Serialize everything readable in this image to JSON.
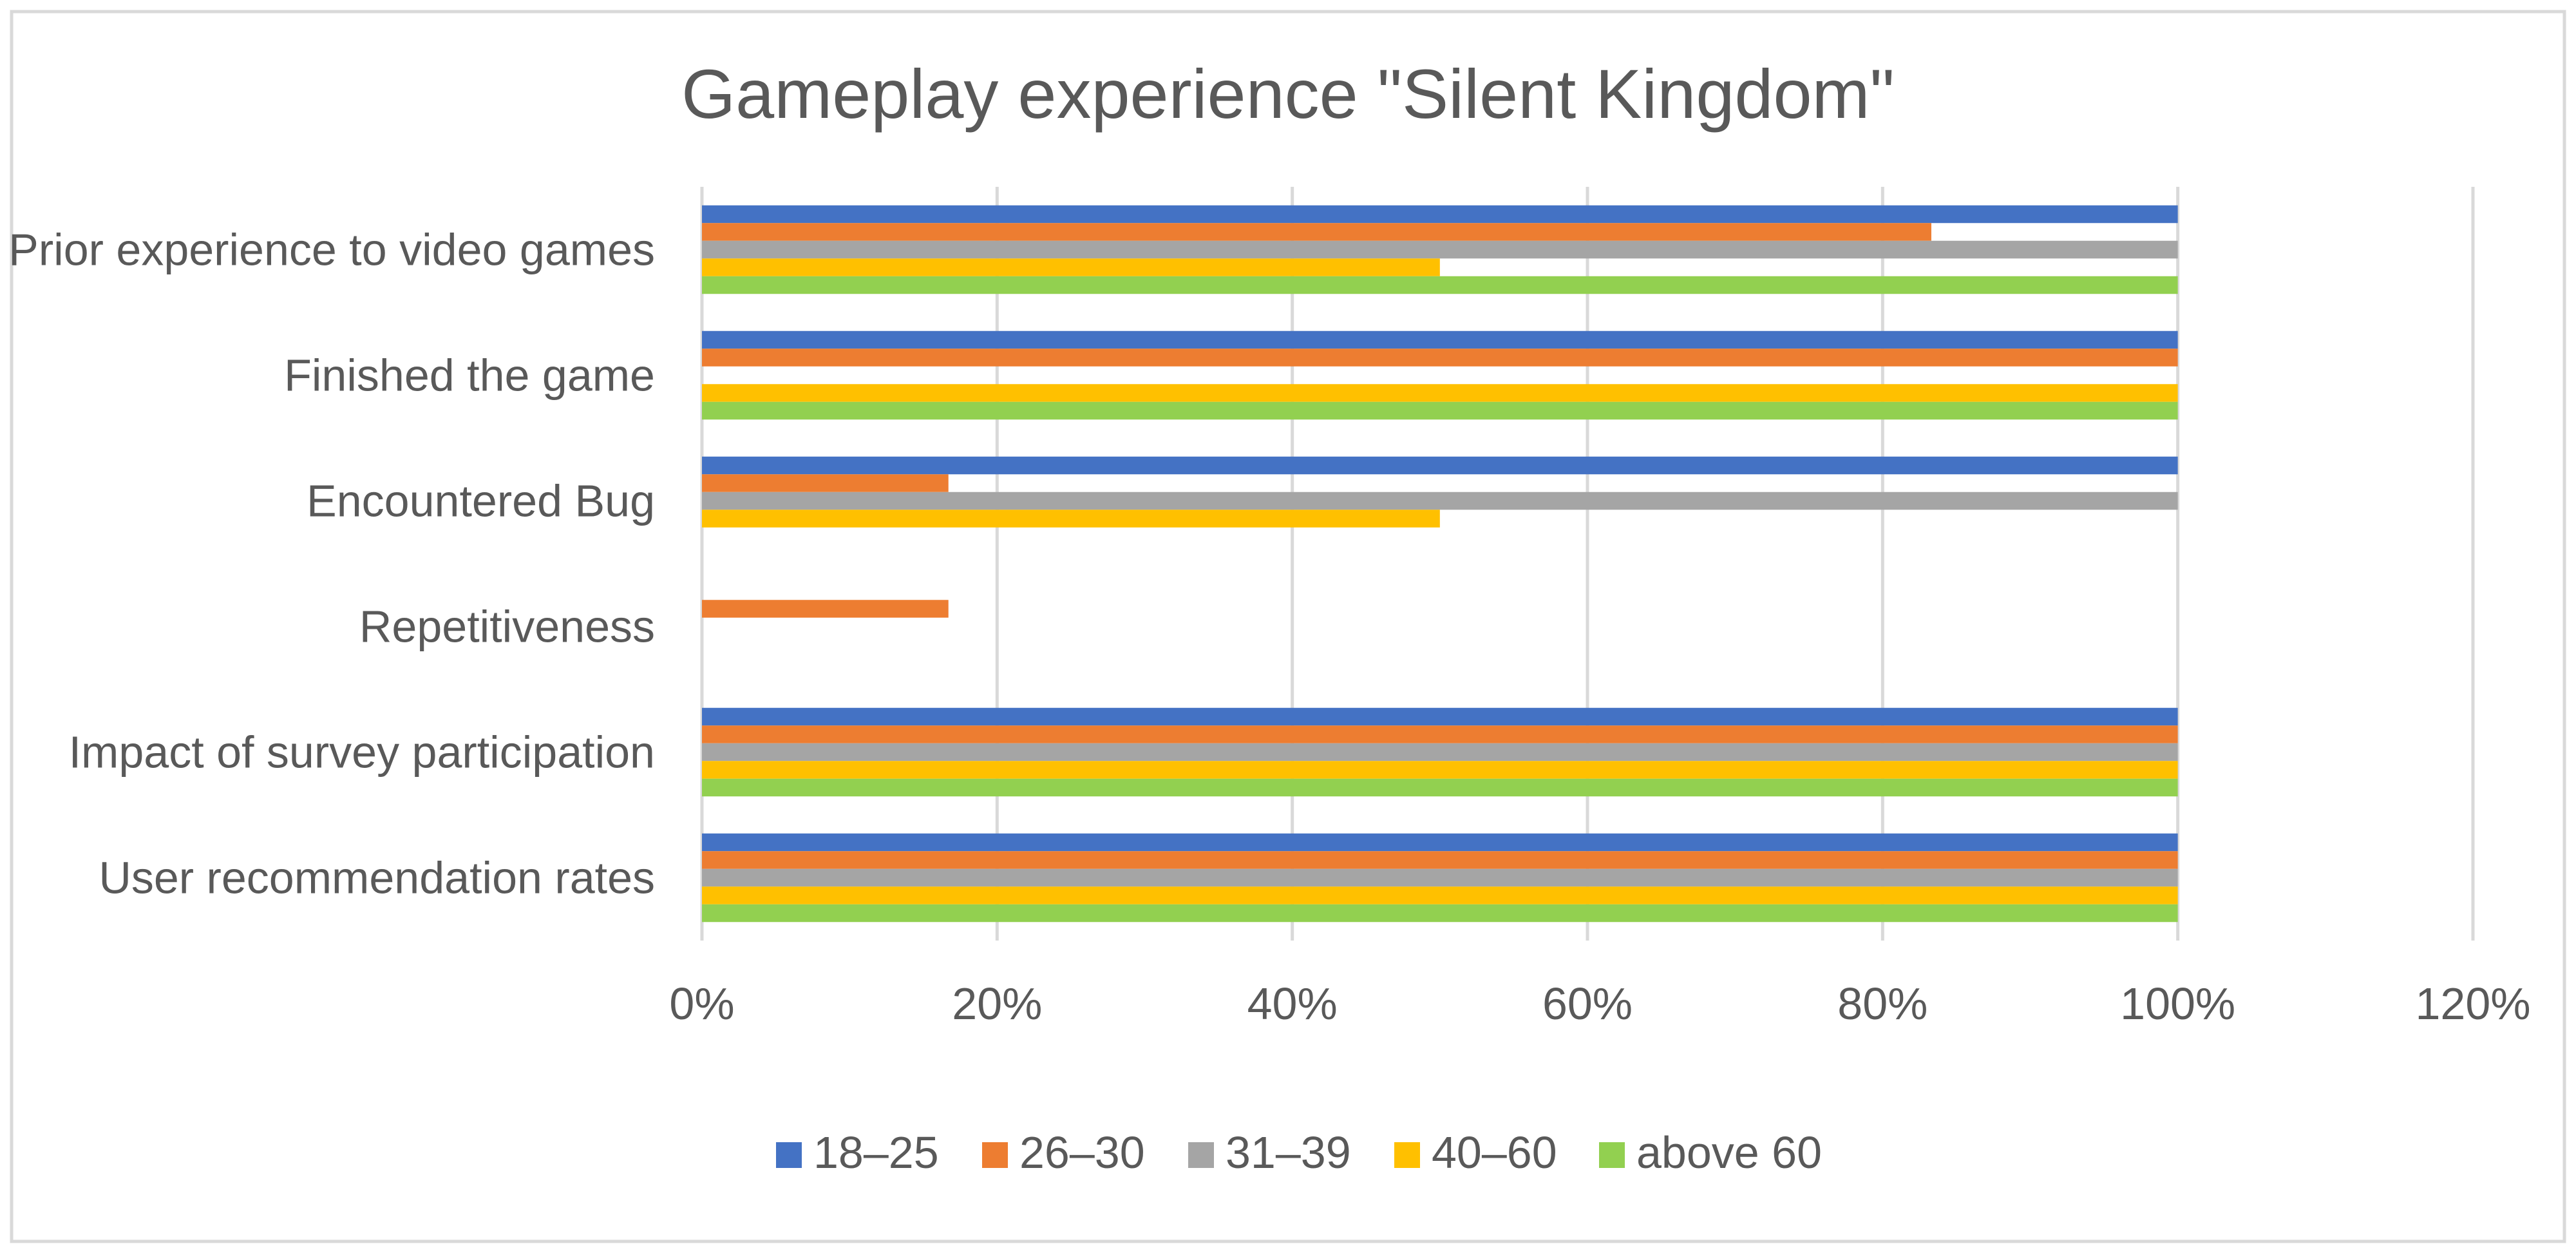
{
  "chart_data": {
    "type": "bar",
    "orientation": "horizontal",
    "title": "Gameplay experience \"Silent Kingdom\"",
    "xlabel": "",
    "ylabel": "",
    "xlim": [
      0,
      120
    ],
    "x_ticks": [
      "0%",
      "20%",
      "40%",
      "60%",
      "80%",
      "100%",
      "120%"
    ],
    "x_tick_values": [
      0,
      20,
      40,
      60,
      80,
      100,
      120
    ],
    "grid": "vertical",
    "legend_position": "bottom",
    "categories": [
      "Prior experience to video games",
      "Finished the game",
      "Encountered Bug",
      "Repetitiveness",
      "Impact of survey participation",
      "User recommendation rates"
    ],
    "series": [
      {
        "name": "18–25",
        "color": "#4472C4",
        "values": [
          100,
          100,
          100,
          0,
          100,
          100
        ]
      },
      {
        "name": "26–30",
        "color": "#ED7D31",
        "values": [
          83.3,
          100,
          16.7,
          16.7,
          100,
          100
        ]
      },
      {
        "name": "31–39",
        "color": "#A5A5A5",
        "values": [
          100,
          0,
          100,
          0,
          100,
          100
        ]
      },
      {
        "name": "40–60",
        "color": "#FFC000",
        "values": [
          50,
          100,
          50,
          0,
          100,
          100
        ]
      },
      {
        "name": "above 60",
        "color": "#92D050",
        "values": [
          100,
          100,
          0,
          0,
          100,
          100
        ]
      }
    ]
  }
}
